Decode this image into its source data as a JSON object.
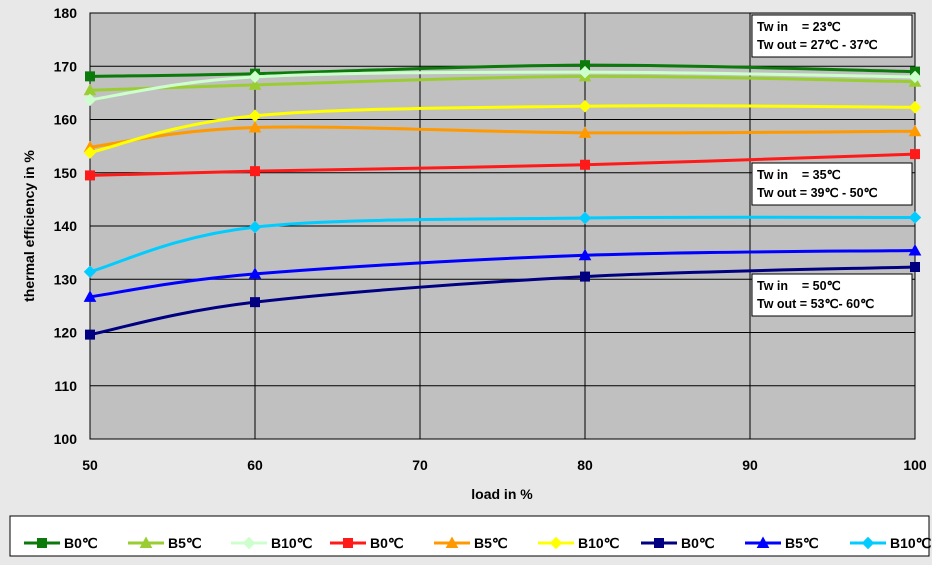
{
  "chart_data": {
    "type": "line",
    "xlabel": "load in %",
    "ylabel": "thermal efficiency in %",
    "xlim": [
      50,
      100
    ],
    "ylim": [
      100,
      180
    ],
    "xticks": [
      "50",
      "60",
      "70",
      "80",
      "90",
      "100"
    ],
    "yticks": [
      "100",
      "110",
      "120",
      "130",
      "140",
      "150",
      "160",
      "170",
      "180"
    ],
    "grid": true,
    "legend_position": "bottom",
    "colors": {
      "page_background": "#e8e8e8",
      "plot_background": "#c0c0c0",
      "grid": "#000000"
    },
    "series": [
      {
        "name": "B0℃",
        "color": "#0b7a0b",
        "marker": "square",
        "x": [
          50,
          60,
          80,
          100
        ],
        "y": [
          168.1,
          168.6,
          170.2,
          169.0
        ]
      },
      {
        "name": "B5℃",
        "color": "#9acd32",
        "marker": "triangle",
        "x": [
          50,
          60,
          80,
          100
        ],
        "y": [
          165.5,
          166.5,
          168.1,
          167.1
        ]
      },
      {
        "name": "B10℃",
        "color": "#ccffcc",
        "marker": "diamond",
        "x": [
          50,
          60,
          80,
          100
        ],
        "y": [
          163.7,
          168.0,
          168.9,
          168.0
        ]
      },
      {
        "name": "B0℃",
        "color": "#ff1a1a",
        "marker": "square",
        "x": [
          50,
          60,
          80,
          100
        ],
        "y": [
          149.5,
          150.3,
          151.5,
          153.5
        ]
      },
      {
        "name": "B5℃",
        "color": "#ff9900",
        "marker": "triangle",
        "x": [
          50,
          60,
          80,
          100
        ],
        "y": [
          154.8,
          158.5,
          157.5,
          157.8
        ]
      },
      {
        "name": "B10℃",
        "color": "#ffff00",
        "marker": "diamond",
        "x": [
          50,
          60,
          80,
          100
        ],
        "y": [
          153.8,
          160.7,
          162.5,
          162.3
        ]
      },
      {
        "name": "B0℃",
        "color": "#000080",
        "marker": "square",
        "x": [
          50,
          60,
          80,
          100
        ],
        "y": [
          119.6,
          125.7,
          130.5,
          132.3
        ]
      },
      {
        "name": "B5℃",
        "color": "#0000ff",
        "marker": "triangle",
        "x": [
          50,
          60,
          80,
          100
        ],
        "y": [
          126.7,
          131.0,
          134.5,
          135.4
        ]
      },
      {
        "name": "B10℃",
        "color": "#00ccff",
        "marker": "diamond",
        "x": [
          50,
          60,
          80,
          100
        ],
        "y": [
          131.4,
          139.8,
          141.5,
          141.6
        ]
      }
    ],
    "annotations": [
      {
        "lines": [
          "Tw in    = 23℃",
          "Tw out = 27℃ - 37℃"
        ]
      },
      {
        "lines": [
          "Tw in    = 35℃",
          "Tw out = 39℃ - 50℃"
        ]
      },
      {
        "lines": [
          "Tw in    = 50℃",
          "Tw out = 53℃- 60℃"
        ]
      }
    ]
  }
}
